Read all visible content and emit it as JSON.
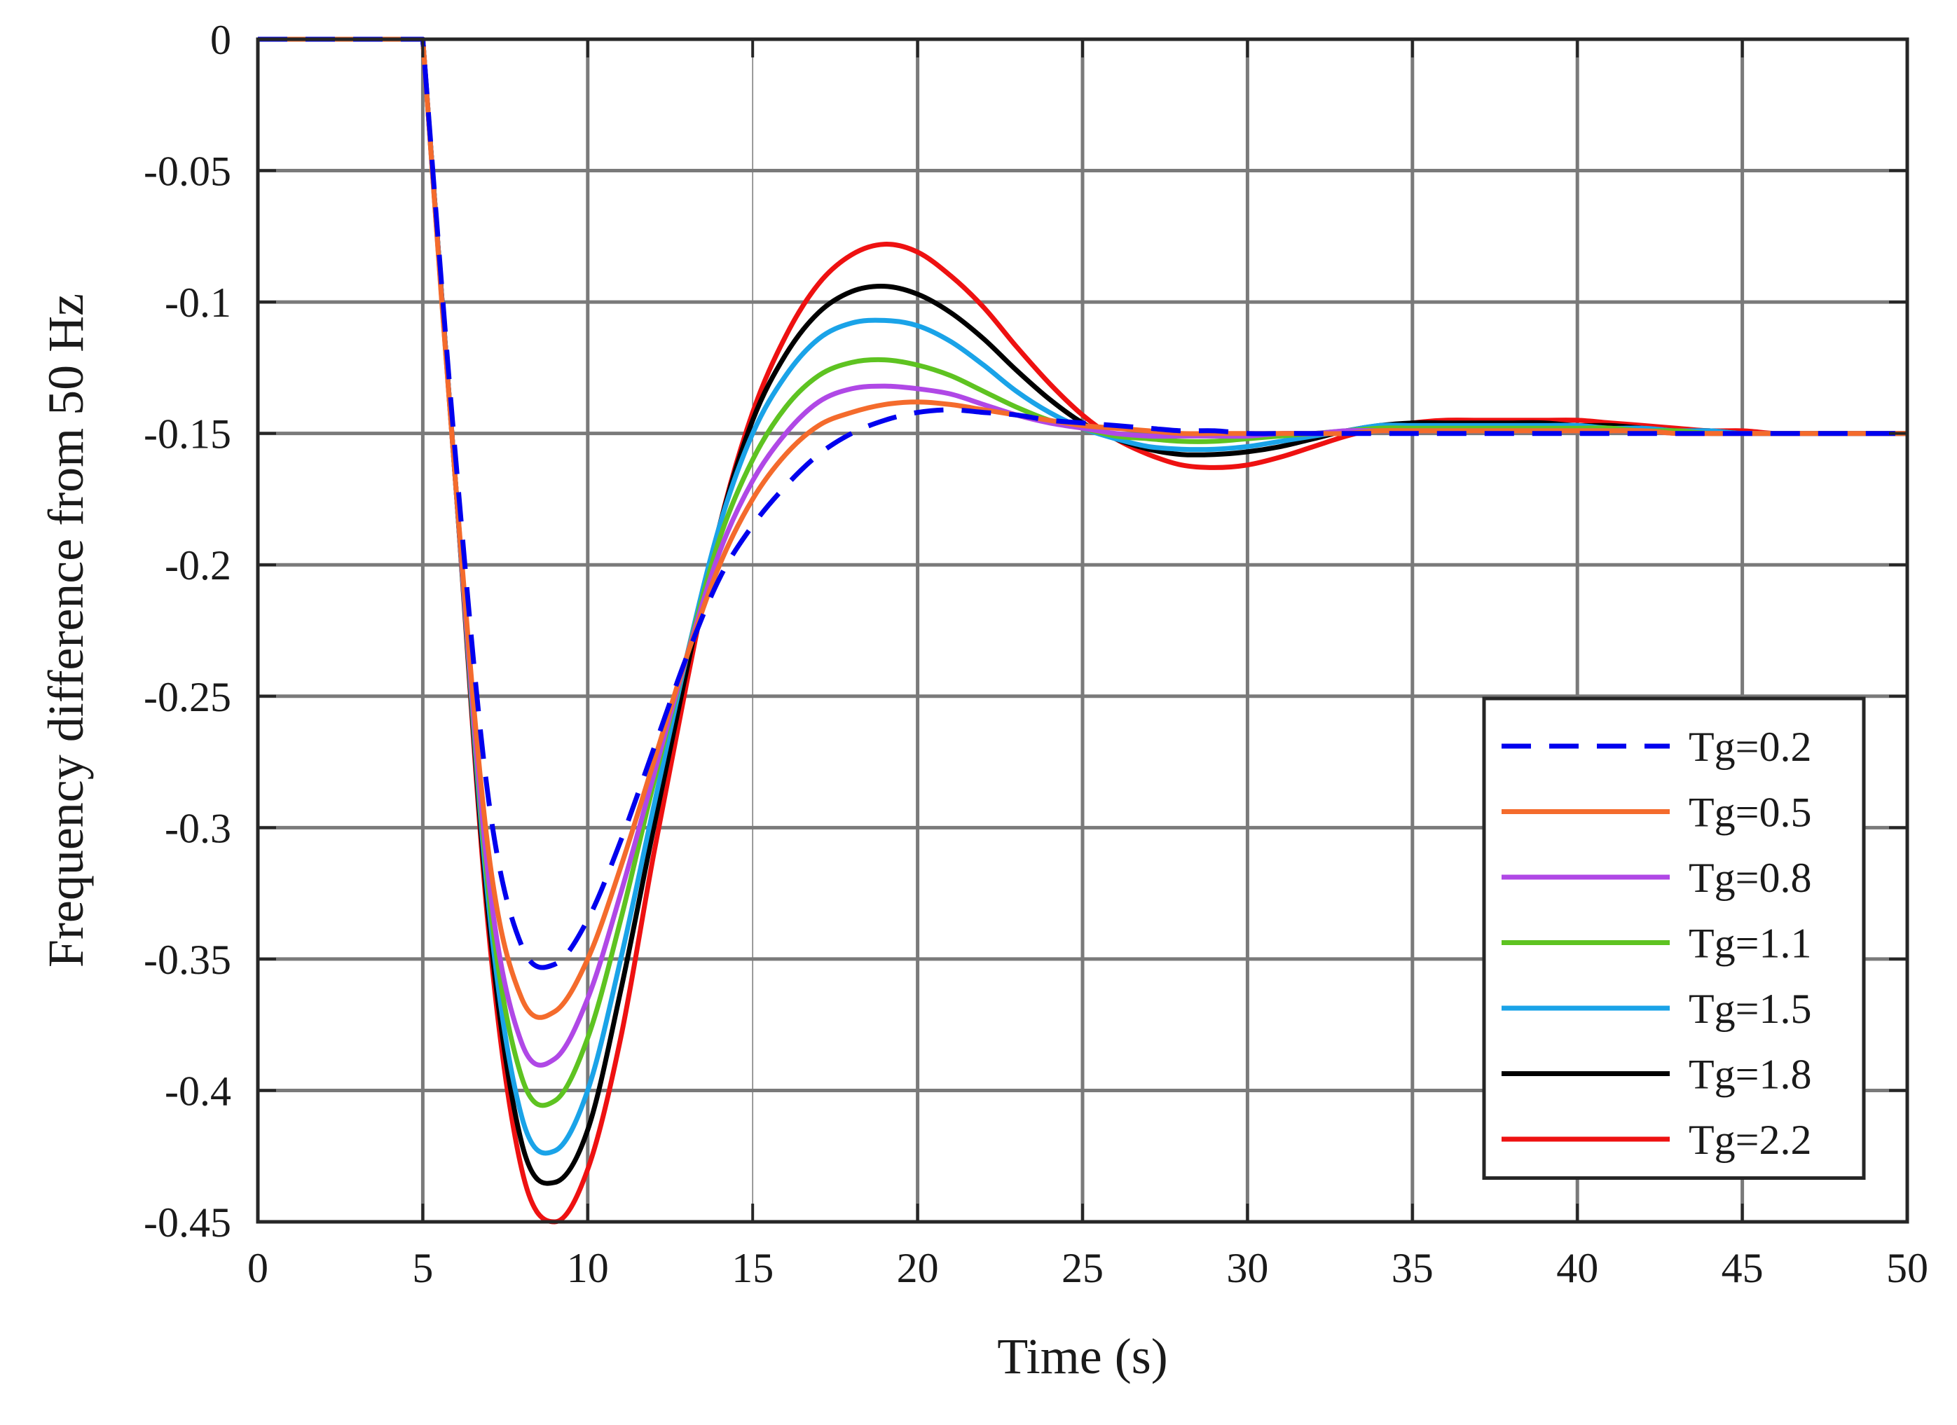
{
  "chart_data": {
    "type": "line",
    "title": "",
    "xlabel": "Time (s)",
    "ylabel": "Frequency difference from 50 Hz",
    "xlim": [
      0,
      50
    ],
    "ylim": [
      -0.45,
      0
    ],
    "xticks": [
      0,
      5,
      10,
      15,
      20,
      25,
      30,
      35,
      40,
      45,
      50
    ],
    "xtick_labels": [
      "0",
      "5",
      "10",
      "15",
      "20",
      "25",
      "30",
      "35",
      "40",
      "45",
      "50"
    ],
    "yticks": [
      0,
      -0.05,
      -0.1,
      -0.15,
      -0.2,
      -0.25,
      -0.3,
      -0.35,
      -0.4,
      -0.45
    ],
    "ytick_labels": [
      "0",
      "-0.05",
      "-0.1",
      "-0.15",
      "-0.2",
      "-0.25",
      "-0.3",
      "-0.35",
      "-0.4",
      "-0.45"
    ],
    "grid": true,
    "legend_position": "bottom-right",
    "x": [
      0,
      5,
      6,
      7,
      8,
      9,
      10,
      11,
      12,
      13,
      14,
      15,
      16,
      17,
      18,
      19,
      20,
      21,
      22,
      23,
      24,
      25,
      26,
      27,
      28,
      29,
      30,
      31,
      32,
      33,
      34,
      35,
      36,
      37,
      38,
      39,
      40,
      41,
      42,
      43,
      44,
      45,
      46,
      47,
      48,
      49,
      50
    ],
    "series": [
      {
        "name": "Tg=0.2",
        "color": "#0000ee",
        "dashed": true,
        "values": [
          0,
          0,
          -0.16,
          -0.29,
          -0.345,
          -0.352,
          -0.335,
          -0.305,
          -0.27,
          -0.235,
          -0.205,
          -0.185,
          -0.17,
          -0.158,
          -0.15,
          -0.145,
          -0.142,
          -0.141,
          -0.142,
          -0.143,
          -0.145,
          -0.146,
          -0.147,
          -0.148,
          -0.149,
          -0.149,
          -0.15,
          -0.15,
          -0.15,
          -0.15,
          -0.15,
          -0.15,
          -0.15,
          -0.15,
          -0.15,
          -0.15,
          -0.15,
          -0.15,
          -0.15,
          -0.15,
          -0.15,
          -0.15,
          -0.15,
          -0.15,
          -0.15,
          -0.15,
          -0.15
        ]
      },
      {
        "name": "Tg=0.5",
        "color": "#f46b2c",
        "dashed": false,
        "values": [
          0,
          0,
          -0.17,
          -0.31,
          -0.365,
          -0.37,
          -0.35,
          -0.315,
          -0.275,
          -0.235,
          -0.2,
          -0.175,
          -0.158,
          -0.147,
          -0.142,
          -0.139,
          -0.138,
          -0.139,
          -0.141,
          -0.143,
          -0.145,
          -0.147,
          -0.148,
          -0.149,
          -0.15,
          -0.15,
          -0.15,
          -0.15,
          -0.15,
          -0.15,
          -0.149,
          -0.149,
          -0.149,
          -0.149,
          -0.149,
          -0.149,
          -0.149,
          -0.149,
          -0.149,
          -0.15,
          -0.15,
          -0.15,
          -0.15,
          -0.15,
          -0.15,
          -0.15,
          -0.15
        ]
      },
      {
        "name": "Tg=0.8",
        "color": "#b048e6",
        "dashed": false,
        "values": [
          0,
          0,
          -0.17,
          -0.32,
          -0.382,
          -0.388,
          -0.365,
          -0.325,
          -0.28,
          -0.235,
          -0.195,
          -0.168,
          -0.15,
          -0.138,
          -0.133,
          -0.132,
          -0.133,
          -0.135,
          -0.139,
          -0.143,
          -0.146,
          -0.148,
          -0.15,
          -0.151,
          -0.151,
          -0.151,
          -0.151,
          -0.15,
          -0.15,
          -0.149,
          -0.149,
          -0.149,
          -0.149,
          -0.149,
          -0.149,
          -0.149,
          -0.149,
          -0.149,
          -0.149,
          -0.15,
          -0.15,
          -0.15,
          -0.15,
          -0.15,
          -0.15,
          -0.15,
          -0.15
        ]
      },
      {
        "name": "Tg=1.1",
        "color": "#5ec321",
        "dashed": false,
        "values": [
          0,
          0,
          -0.17,
          -0.325,
          -0.395,
          -0.404,
          -0.38,
          -0.335,
          -0.283,
          -0.235,
          -0.19,
          -0.16,
          -0.14,
          -0.128,
          -0.123,
          -0.122,
          -0.124,
          -0.128,
          -0.134,
          -0.14,
          -0.145,
          -0.148,
          -0.151,
          -0.152,
          -0.153,
          -0.153,
          -0.152,
          -0.151,
          -0.15,
          -0.149,
          -0.148,
          -0.148,
          -0.148,
          -0.148,
          -0.148,
          -0.148,
          -0.148,
          -0.148,
          -0.149,
          -0.149,
          -0.15,
          -0.15,
          -0.15,
          -0.15,
          -0.15,
          -0.15,
          -0.15
        ]
      },
      {
        "name": "Tg=1.5",
        "color": "#1aa3e8",
        "dashed": false,
        "values": [
          0,
          0,
          -0.17,
          -0.33,
          -0.41,
          -0.423,
          -0.4,
          -0.35,
          -0.292,
          -0.235,
          -0.185,
          -0.15,
          -0.128,
          -0.114,
          -0.108,
          -0.107,
          -0.109,
          -0.115,
          -0.124,
          -0.134,
          -0.142,
          -0.148,
          -0.152,
          -0.155,
          -0.156,
          -0.156,
          -0.155,
          -0.153,
          -0.151,
          -0.149,
          -0.147,
          -0.147,
          -0.147,
          -0.147,
          -0.147,
          -0.147,
          -0.147,
          -0.148,
          -0.148,
          -0.149,
          -0.149,
          -0.15,
          -0.15,
          -0.15,
          -0.15,
          -0.15,
          -0.15
        ]
      },
      {
        "name": "Tg=1.8",
        "color": "#000000",
        "dashed": false,
        "values": [
          0,
          0,
          -0.17,
          -0.335,
          -0.42,
          -0.435,
          -0.415,
          -0.362,
          -0.3,
          -0.24,
          -0.185,
          -0.145,
          -0.12,
          -0.104,
          -0.096,
          -0.094,
          -0.097,
          -0.104,
          -0.114,
          -0.126,
          -0.137,
          -0.146,
          -0.152,
          -0.156,
          -0.158,
          -0.158,
          -0.157,
          -0.155,
          -0.152,
          -0.149,
          -0.147,
          -0.146,
          -0.146,
          -0.146,
          -0.146,
          -0.146,
          -0.147,
          -0.147,
          -0.148,
          -0.149,
          -0.149,
          -0.15,
          -0.15,
          -0.15,
          -0.15,
          -0.15,
          -0.15
        ]
      },
      {
        "name": "Tg=2.2",
        "color": "#ee1111",
        "dashed": false,
        "values": [
          0,
          0,
          -0.17,
          -0.34,
          -0.43,
          -0.45,
          -0.43,
          -0.38,
          -0.31,
          -0.245,
          -0.185,
          -0.142,
          -0.113,
          -0.093,
          -0.082,
          -0.078,
          -0.081,
          -0.09,
          -0.102,
          -0.117,
          -0.131,
          -0.143,
          -0.152,
          -0.158,
          -0.162,
          -0.163,
          -0.162,
          -0.159,
          -0.155,
          -0.151,
          -0.148,
          -0.146,
          -0.145,
          -0.145,
          -0.145,
          -0.145,
          -0.145,
          -0.146,
          -0.147,
          -0.148,
          -0.149,
          -0.149,
          -0.15,
          -0.15,
          -0.15,
          -0.15,
          -0.15
        ]
      }
    ]
  }
}
